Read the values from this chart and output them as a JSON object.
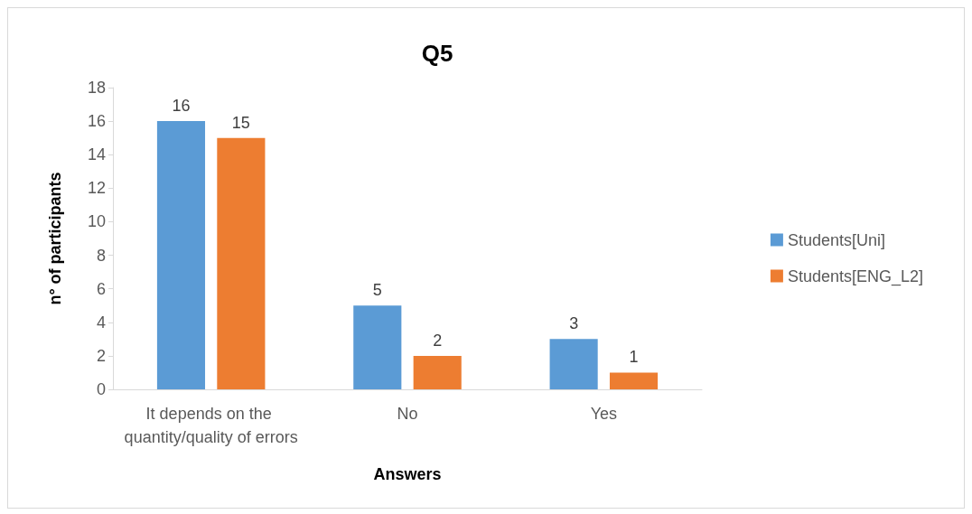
{
  "chart_data": {
    "type": "bar",
    "title": "Q5",
    "xlabel": "Answers",
    "ylabel": "n° of participants",
    "categories": [
      "It depends on the quantity/quality of errors",
      "No",
      "Yes"
    ],
    "series": [
      {
        "name": "Students[Uni]",
        "color": "#5b9bd5",
        "values": [
          16,
          5,
          3
        ]
      },
      {
        "name": "Students[ENG_L2]",
        "color": "#ed7d31",
        "values": [
          15,
          2,
          1
        ]
      }
    ],
    "ylim": [
      0,
      18
    ],
    "yticks": [
      0,
      2,
      4,
      6,
      8,
      10,
      12,
      14,
      16,
      18
    ],
    "grid": false,
    "legend": "right",
    "data_labels": true
  }
}
